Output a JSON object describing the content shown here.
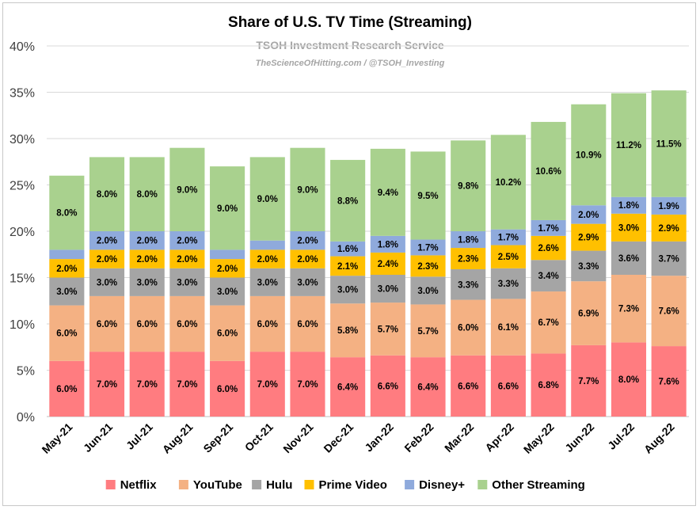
{
  "chart_data": {
    "type": "bar",
    "stacked": true,
    "title": "Share of U.S. TV Time (Streaming)",
    "subtitle": "TSOH Investment Research Service",
    "source": "TheScienceOfHitting.com / @TSOH_Investing",
    "xlabel": "",
    "ylabel": "",
    "ylim": [
      0,
      40
    ],
    "yticks": [
      "0%",
      "5%",
      "10%",
      "15%",
      "20%",
      "25%",
      "30%",
      "35%",
      "40%"
    ],
    "ytick_values": [
      0,
      5,
      10,
      15,
      20,
      25,
      30,
      35,
      40
    ],
    "grid": true,
    "legend_position": "bottom",
    "categories": [
      "May-21",
      "Jun-21",
      "Jul-21",
      "Aug-21",
      "Sep-21",
      "Oct-21",
      "Nov-21",
      "Dec-21",
      "Jan-22",
      "Feb-22",
      "Mar-22",
      "Apr-22",
      "May-22",
      "Jun-22",
      "Jul-22",
      "Aug-22"
    ],
    "series": [
      {
        "name": "Netflix",
        "color": "#ff7c80",
        "values": [
          6.0,
          7.0,
          7.0,
          7.0,
          6.0,
          7.0,
          7.0,
          6.4,
          6.6,
          6.4,
          6.6,
          6.6,
          6.8,
          7.7,
          8.0,
          7.6
        ],
        "labels": [
          "6.0%",
          "7.0%",
          "7.0%",
          "7.0%",
          "6.0%",
          "7.0%",
          "7.0%",
          "6.4%",
          "6.6%",
          "6.4%",
          "6.6%",
          "6.6%",
          "6.8%",
          "7.7%",
          "8.0%",
          "7.6%"
        ]
      },
      {
        "name": "YouTube",
        "color": "#f4b183",
        "values": [
          6.0,
          6.0,
          6.0,
          6.0,
          6.0,
          6.0,
          6.0,
          5.8,
          5.7,
          5.7,
          6.0,
          6.1,
          6.7,
          6.9,
          7.3,
          7.6
        ],
        "labels": [
          "6.0%",
          "6.0%",
          "6.0%",
          "6.0%",
          "6.0%",
          "6.0%",
          "6.0%",
          "5.8%",
          "5.7%",
          "5.7%",
          "6.0%",
          "6.1%",
          "6.7%",
          "6.9%",
          "7.3%",
          "7.6%"
        ]
      },
      {
        "name": "Hulu",
        "color": "#a5a5a5",
        "values": [
          3.0,
          3.0,
          3.0,
          3.0,
          3.0,
          3.0,
          3.0,
          3.0,
          3.0,
          3.0,
          3.3,
          3.3,
          3.4,
          3.3,
          3.6,
          3.7
        ],
        "labels": [
          "3.0%",
          "3.0%",
          "3.0%",
          "3.0%",
          "3.0%",
          "3.0%",
          "3.0%",
          "3.0%",
          "3.0%",
          "3.0%",
          "3.3%",
          "3.3%",
          "3.4%",
          "3.3%",
          "3.6%",
          "3.7%"
        ]
      },
      {
        "name": "Prime Video",
        "color": "#ffc000",
        "values": [
          2.0,
          2.0,
          2.0,
          2.0,
          2.0,
          2.0,
          2.0,
          2.1,
          2.4,
          2.3,
          2.3,
          2.5,
          2.6,
          2.9,
          3.0,
          2.9
        ],
        "labels": [
          "2.0%",
          "2.0%",
          "2.0%",
          "2.0%",
          "2.0%",
          "2.0%",
          "2.0%",
          "2.1%",
          "2.4%",
          "2.3%",
          "2.3%",
          "2.5%",
          "2.6%",
          "2.9%",
          "3.0%",
          "2.9%"
        ]
      },
      {
        "name": "Disney+",
        "color": "#8faadc",
        "values": [
          1.0,
          2.0,
          2.0,
          2.0,
          1.0,
          1.0,
          2.0,
          1.6,
          1.8,
          1.7,
          1.8,
          1.7,
          1.7,
          2.0,
          1.8,
          1.9
        ],
        "labels": [
          "",
          "2.0%",
          "2.0%",
          "2.0%",
          "",
          "",
          "2.0%",
          "1.6%",
          "1.8%",
          "1.7%",
          "1.8%",
          "1.7%",
          "1.7%",
          "2.0%",
          "1.8%",
          "1.9%"
        ]
      },
      {
        "name": "Other Streaming",
        "color": "#a9d18e",
        "values": [
          8.0,
          8.0,
          8.0,
          9.0,
          9.0,
          9.0,
          9.0,
          8.8,
          9.4,
          9.5,
          9.8,
          10.2,
          10.6,
          10.9,
          11.2,
          11.5
        ],
        "labels": [
          "8.0%",
          "8.0%",
          "8.0%",
          "9.0%",
          "9.0%",
          "9.0%",
          "9.0%",
          "8.8%",
          "9.4%",
          "9.5%",
          "9.8%",
          "10.2%",
          "10.6%",
          "10.9%",
          "11.2%",
          "11.5%"
        ]
      }
    ]
  }
}
